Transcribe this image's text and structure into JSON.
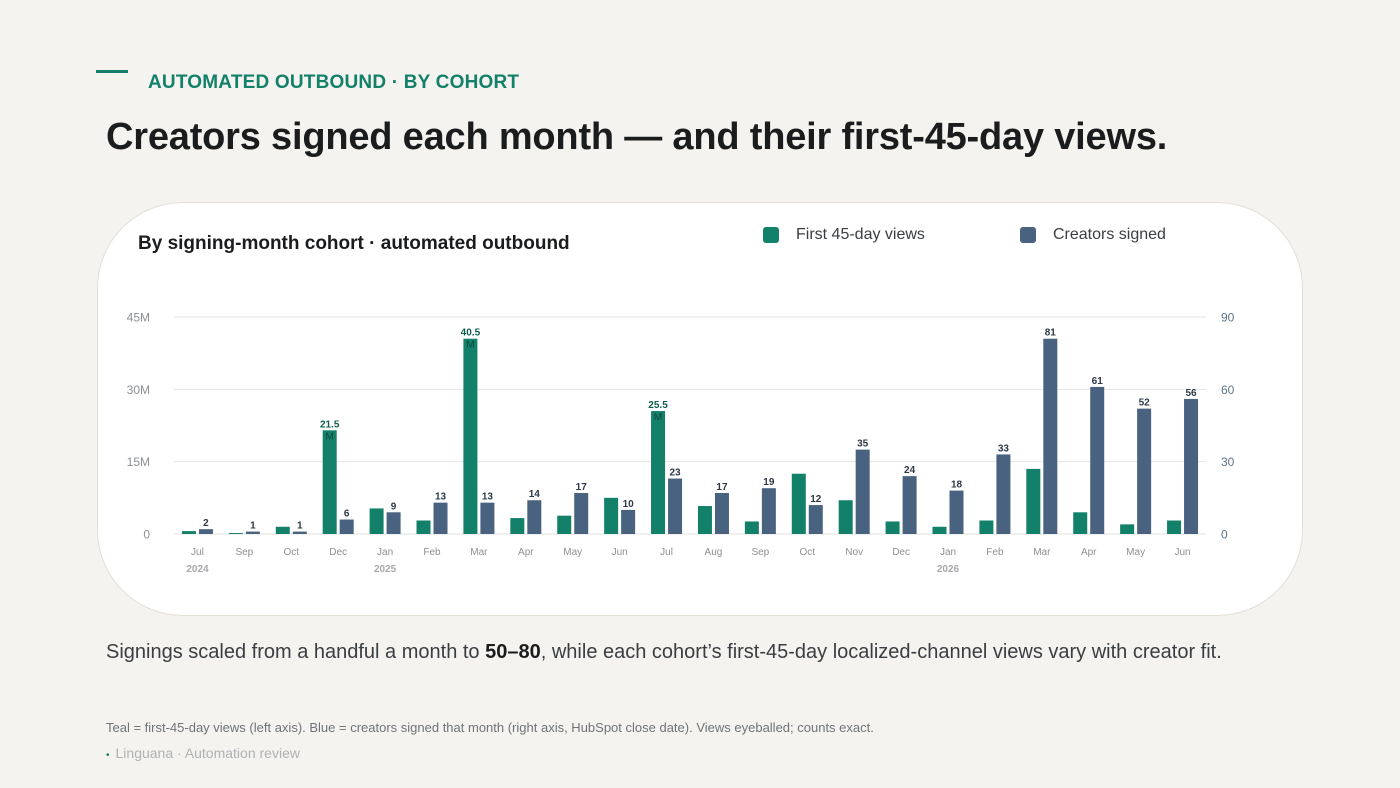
{
  "eyebrow": "AUTOMATED OUTBOUND · BY COHORT",
  "title": "Creators signed each month — and their first-45-day views.",
  "card_title": "By signing-month cohort · automated outbound",
  "legend": [
    {
      "label": "First 45-day views",
      "color": "#13806a"
    },
    {
      "label": "Creators signed",
      "color": "#48627f"
    }
  ],
  "caption": {
    "before": "Signings scaled from a handful a month to ",
    "bold": "50–80",
    "after": ", while each cohort’s first-45-day localized-channel views vary with creator fit."
  },
  "footnote": "Teal = first-45-day views (left axis).  Blue = creators signed that month (right axis, HubSpot close date).  Views eyeballed; counts exact.",
  "source": "Linguana · Automation review",
  "chart_data": {
    "type": "bar",
    "categories": [
      "Jul",
      "Sep",
      "Oct",
      "Dec",
      "Jan",
      "Feb",
      "Mar",
      "Apr",
      "May",
      "Jun",
      "Jul",
      "Aug",
      "Sep",
      "Oct",
      "Nov",
      "Dec",
      "Jan",
      "Feb",
      "Mar",
      "Apr",
      "May",
      "Jun"
    ],
    "year_labels": [
      {
        "index": 0,
        "label": "2024"
      },
      {
        "index": 4,
        "label": "2025"
      },
      {
        "index": 16,
        "label": "2026"
      }
    ],
    "series": [
      {
        "name": "First 45-day views",
        "axis": "left",
        "color": "#13806a",
        "values": [
          0.6,
          0.2,
          1.5,
          21.5,
          5.3,
          2.8,
          40.5,
          3.3,
          3.8,
          7.5,
          25.5,
          5.8,
          2.6,
          12.5,
          7.0,
          2.6,
          1.5,
          2.8,
          13.5,
          4.5,
          2.0,
          2.8
        ],
        "data_labels": {
          "3": "21.5",
          "6": "40.5",
          "10": "25.5"
        },
        "label_suffix": "M"
      },
      {
        "name": "Creators signed",
        "axis": "right",
        "color": "#48627f",
        "values": [
          2,
          1,
          1,
          6,
          9,
          13,
          13,
          14,
          17,
          10,
          23,
          17,
          19,
          12,
          35,
          24,
          18,
          33,
          81,
          61,
          52,
          56
        ]
      }
    ],
    "y_left": {
      "ticks": [
        "0",
        "15M",
        "30M",
        "45M"
      ],
      "tick_values": [
        0,
        15,
        30,
        45
      ],
      "range": [
        0,
        45
      ],
      "unit": "M"
    },
    "y_right": {
      "ticks": [
        "0",
        "30",
        "60",
        "90"
      ],
      "tick_values": [
        0,
        30,
        60,
        90
      ],
      "range": [
        0,
        90
      ]
    },
    "grid": true
  }
}
